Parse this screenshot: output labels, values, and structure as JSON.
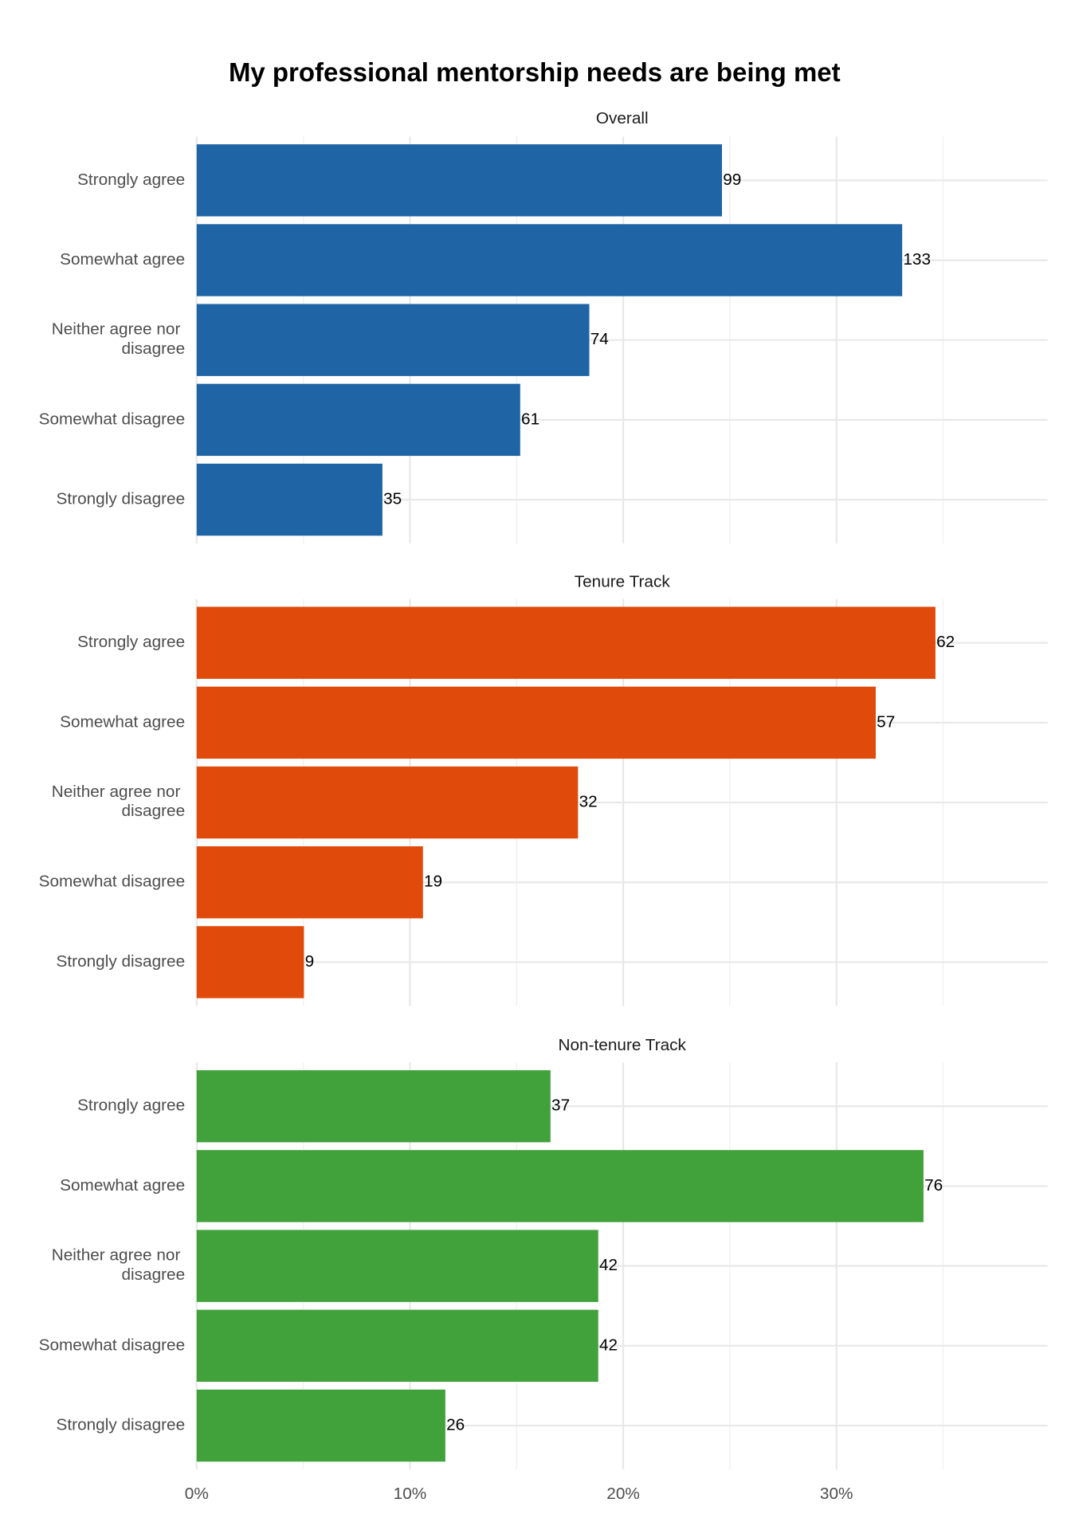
{
  "title": "My professional mentorship needs are being met",
  "chart_data": [
    {
      "type": "bar",
      "subtitle": "Overall",
      "categories": [
        "Strongly agree",
        "Somewhat agree",
        "Neither agree nor disagree",
        "Somewhat disagree",
        "Strongly disagree"
      ],
      "values": [
        24.63,
        33.08,
        18.41,
        15.17,
        8.71
      ],
      "value_labels": [
        "99",
        "133",
        "74",
        "61",
        "35"
      ],
      "color": "#1f65a6",
      "xlim": [
        0,
        39.9
      ],
      "xticks": [
        {
          "value": 0,
          "label": "0%"
        },
        {
          "value": 10,
          "label": "10%"
        },
        {
          "value": 20,
          "label": "20%"
        },
        {
          "value": 30,
          "label": "30%"
        }
      ],
      "minor_xticks": [
        5,
        15,
        25,
        35
      ],
      "grid": true
    },
    {
      "type": "bar",
      "subtitle": "Tenure Track",
      "categories": [
        "Strongly agree",
        "Somewhat agree",
        "Neither agree nor disagree",
        "Somewhat disagree",
        "Strongly disagree"
      ],
      "values": [
        34.64,
        31.84,
        17.88,
        10.61,
        5.03
      ],
      "value_labels": [
        "62",
        "57",
        "32",
        "19",
        "9"
      ],
      "color": "#e04a0a",
      "xlim": [
        0,
        39.9
      ],
      "xticks": [
        {
          "value": 0,
          "label": "0%"
        },
        {
          "value": 10,
          "label": "10%"
        },
        {
          "value": 20,
          "label": "20%"
        },
        {
          "value": 30,
          "label": "30%"
        }
      ],
      "minor_xticks": [
        5,
        15,
        25,
        35
      ],
      "grid": true
    },
    {
      "type": "bar",
      "subtitle": "Non-tenure Track",
      "categories": [
        "Strongly agree",
        "Somewhat agree",
        "Neither agree nor disagree",
        "Somewhat disagree",
        "Strongly disagree"
      ],
      "values": [
        16.59,
        34.08,
        18.83,
        18.83,
        11.66
      ],
      "value_labels": [
        "37",
        "76",
        "42",
        "42",
        "26"
      ],
      "color": "#41a23b",
      "xlim": [
        0,
        39.9
      ],
      "xticks": [
        {
          "value": 0,
          "label": "0%"
        },
        {
          "value": 10,
          "label": "10%"
        },
        {
          "value": 20,
          "label": "20%"
        },
        {
          "value": 30,
          "label": "30%"
        }
      ],
      "minor_xticks": [
        5,
        15,
        25,
        35
      ],
      "grid": true
    }
  ]
}
